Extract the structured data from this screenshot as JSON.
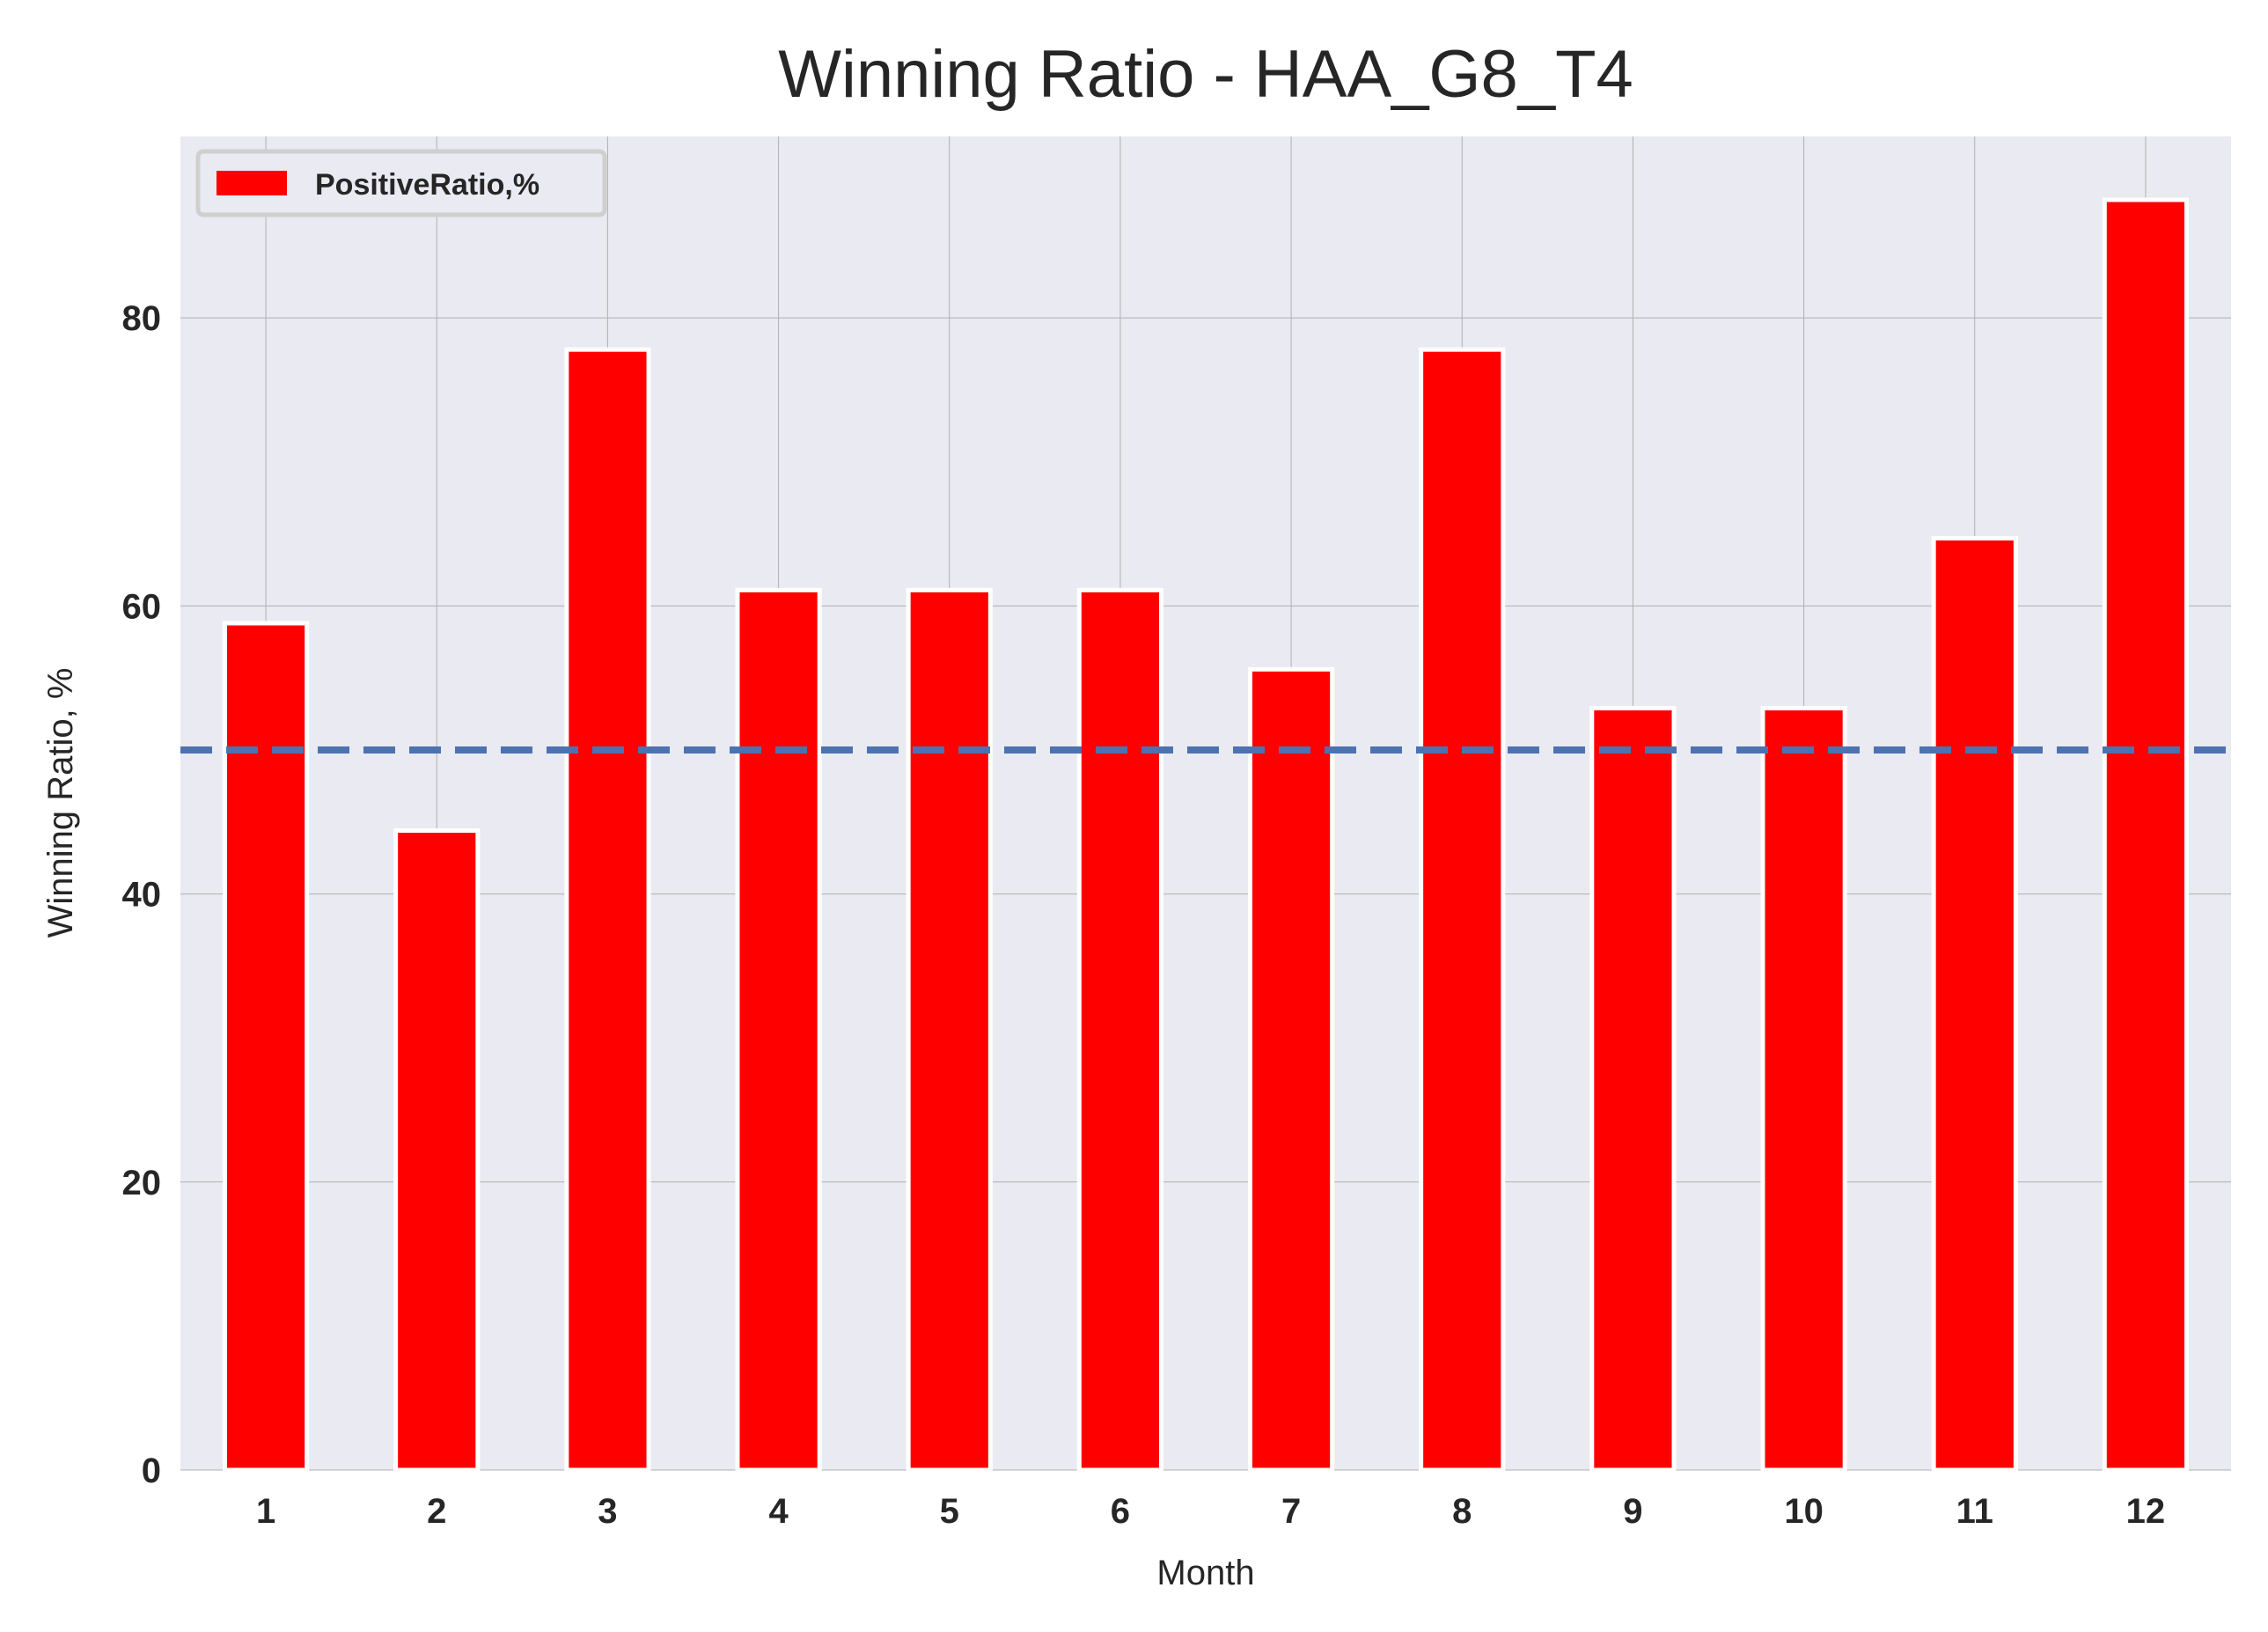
{
  "chart_data": {
    "type": "bar",
    "title": "Winning Ratio - HAA_G8_T4",
    "xlabel": "Month",
    "ylabel": "Winning Ratio, %",
    "categories": [
      "1",
      "2",
      "3",
      "4",
      "5",
      "6",
      "7",
      "8",
      "9",
      "10",
      "11",
      "12"
    ],
    "series": [
      {
        "name": "PositiveRatio,%",
        "values": [
          58.8,
          44.4,
          77.8,
          61.1,
          61.1,
          61.1,
          55.6,
          77.8,
          52.9,
          52.9,
          64.7,
          88.2
        ],
        "color": "#ff0000"
      }
    ],
    "reference_line": {
      "y": 50,
      "style": "dashed",
      "color": "#4c72b0"
    },
    "yticks": [
      "0",
      "20",
      "40",
      "60",
      "80"
    ],
    "ylim": [
      0,
      92.6
    ],
    "grid": true,
    "legend_position": "top-left",
    "colors": {
      "background": "#eaeaf2",
      "grid": "#b0b0b0"
    }
  }
}
